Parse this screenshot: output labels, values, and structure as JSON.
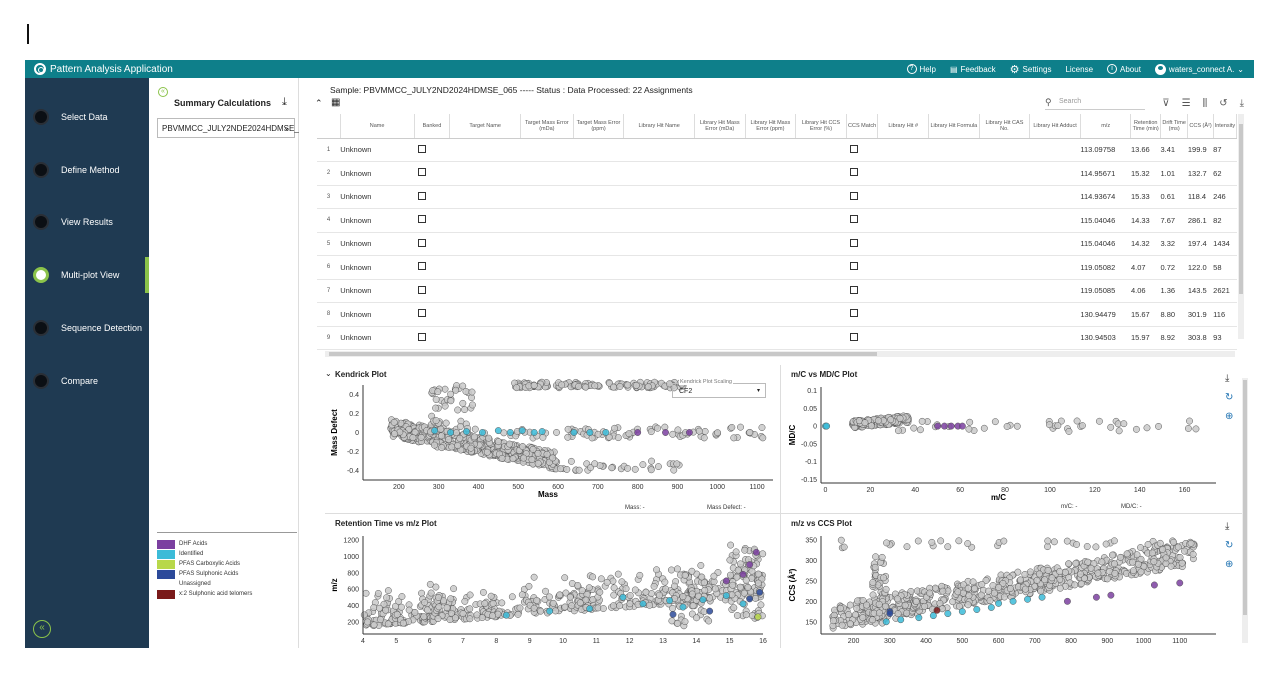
{
  "app": {
    "title": "Pattern Analysis Application",
    "help": "Help",
    "feedback": "Feedback",
    "settings": "Settings",
    "license": "License",
    "about": "About",
    "user": "waters_connect A."
  },
  "nav": {
    "items": [
      {
        "label": "Select Data",
        "active": false
      },
      {
        "label": "Define Method",
        "active": false
      },
      {
        "label": "View Results",
        "active": false
      },
      {
        "label": "Multi-plot View",
        "active": true
      },
      {
        "label": "Sequence Detection",
        "active": false
      },
      {
        "label": "Compare",
        "active": false
      }
    ]
  },
  "summary": {
    "title": "Summary Calculations",
    "selected_sample": "PBVMMCC_JULY2NDE2024HDMSE_"
  },
  "legend": [
    {
      "label": "DHF Acids",
      "color": "#7b3fa0"
    },
    {
      "label": "Identified",
      "color": "#3bbbd8"
    },
    {
      "label": "PFAS Carboxylic Acids",
      "color": "#b8d84a"
    },
    {
      "label": "PFAS Sulphonic Acids",
      "color": "#2c4a9a"
    },
    {
      "label": "Unassigned",
      "color": "#ffffff"
    },
    {
      "label": "x:2 Sulphonic acid telomers",
      "color": "#7a1a1a"
    }
  ],
  "main": {
    "sample_line": "Sample: PBVMMCC_JULY2ND2024HDMSE_065 ----- Status : Data Processed: 22 Assignments",
    "search_placeholder": "Search"
  },
  "table": {
    "columns": [
      "Name",
      "Banked",
      "Target Name",
      "Target Mass Error (mDa)",
      "Target Mass Error (ppm)",
      "Library Hit Name",
      "Library Hit Mass Error (mDa)",
      "Library Hit Mass Error (ppm)",
      "Library Hit CCS Error (%)",
      "CCS Match",
      "Library Hit #",
      "Library Hit Formula",
      "Library Hit CAS No.",
      "Library Hit Adduct",
      "m/z",
      "Retention Time (min)",
      "Drift Time (ms)",
      "CCS (Å²)",
      "Intensity"
    ],
    "rows": [
      {
        "idx": "1",
        "name": "Unknown",
        "mz": "113.09758",
        "rt": "13.66",
        "dt": "3.41",
        "ccs": "199.9",
        "intensity": "87"
      },
      {
        "idx": "2",
        "name": "Unknown",
        "mz": "114.95671",
        "rt": "15.32",
        "dt": "1.01",
        "ccs": "132.7",
        "intensity": "62"
      },
      {
        "idx": "3",
        "name": "Unknown",
        "mz": "114.93674",
        "rt": "15.33",
        "dt": "0.61",
        "ccs": "118.4",
        "intensity": "246"
      },
      {
        "idx": "4",
        "name": "Unknown",
        "mz": "115.04046",
        "rt": "14.33",
        "dt": "7.67",
        "ccs": "286.1",
        "intensity": "82"
      },
      {
        "idx": "5",
        "name": "Unknown",
        "mz": "115.04046",
        "rt": "14.32",
        "dt": "3.32",
        "ccs": "197.4",
        "intensity": "1434"
      },
      {
        "idx": "6",
        "name": "Unknown",
        "mz": "119.05082",
        "rt": "4.07",
        "dt": "0.72",
        "ccs": "122.0",
        "intensity": "58"
      },
      {
        "idx": "7",
        "name": "Unknown",
        "mz": "119.05085",
        "rt": "4.06",
        "dt": "1.36",
        "ccs": "143.5",
        "intensity": "2621"
      },
      {
        "idx": "8",
        "name": "Unknown",
        "mz": "130.94479",
        "rt": "15.67",
        "dt": "8.80",
        "ccs": "301.9",
        "intensity": "116"
      },
      {
        "idx": "9",
        "name": "Unknown",
        "mz": "130.94503",
        "rt": "15.97",
        "dt": "8.92",
        "ccs": "303.8",
        "intensity": "93"
      }
    ]
  },
  "plots": {
    "kendrick": {
      "title": "Kendrick Plot",
      "scaling_label": "Kendrick Plot Scaling",
      "scaling_value": "CF2",
      "xlabel": "Mass",
      "ylabel": "Mass Defect",
      "readout_x": "Mass: -",
      "readout_y": "Mass Defect: -",
      "xticks": [
        "200",
        "300",
        "400",
        "500",
        "600",
        "700",
        "800",
        "900",
        "1000",
        "1100"
      ],
      "yticks": [
        "0.4",
        "0.2",
        "0",
        "-0.2",
        "-0.4"
      ]
    },
    "mc": {
      "title": "m/C vs MD/C Plot",
      "xlabel": "m/C",
      "ylabel": "MD/C",
      "readout_x": "m/C: -",
      "readout_y": "MD/C: -",
      "xticks": [
        "0",
        "20",
        "40",
        "60",
        "80",
        "100",
        "120",
        "140",
        "160"
      ],
      "yticks": [
        "0.1",
        "0.05",
        "0",
        "-0.05",
        "-0.1",
        "-0.15"
      ]
    },
    "rt": {
      "title": "Retention Time vs m/z Plot",
      "ylabel": "m/z",
      "xticks": [
        "4",
        "5",
        "6",
        "7",
        "8",
        "9",
        "10",
        "11",
        "12",
        "13",
        "14",
        "15",
        "16"
      ],
      "yticks": [
        "1200",
        "1000",
        "800",
        "600",
        "400",
        "200"
      ]
    },
    "ccs": {
      "title": "m/z vs CCS Plot",
      "ylabel": "CCS (Å²)",
      "xticks": [
        "200",
        "300",
        "400",
        "500",
        "600",
        "700",
        "800",
        "900",
        "1000",
        "1100"
      ],
      "yticks": [
        "350",
        "300",
        "250",
        "200",
        "150"
      ]
    }
  }
}
